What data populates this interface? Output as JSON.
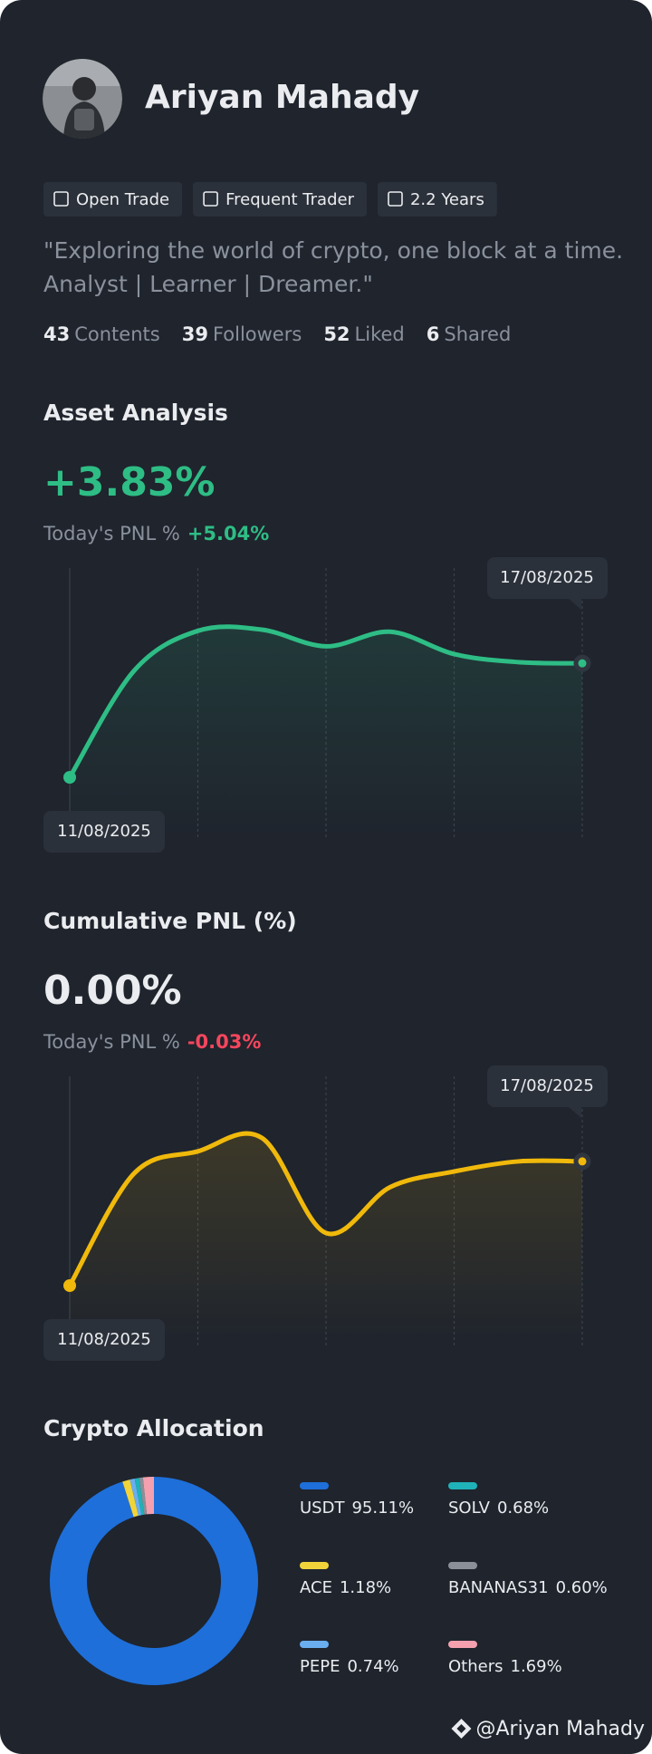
{
  "profile": {
    "name": "Ariyan Mahady",
    "badges": [
      "Open Trade",
      "Frequent Trader",
      "2.2 Years"
    ],
    "bio": [
      "\"Exploring the world of crypto, one block at a time.",
      "Analyst | Learner | Dreamer.\""
    ],
    "stats": [
      {
        "value": 43,
        "label": "Contents"
      },
      {
        "value": 39,
        "label": "Followers"
      },
      {
        "value": 52,
        "label": "Liked"
      },
      {
        "value": 6,
        "label": "Shared"
      }
    ]
  },
  "chart_data": [
    {
      "type": "line",
      "title": "Asset Analysis",
      "headline": "+3.83%",
      "subtitle": "Today's PNL %",
      "subtitle_value": "+5.04%",
      "subtitle_color": "#2ebd85",
      "headline_color": "#2ebd85",
      "date_start": "11/08/2025",
      "date_end": "17/08/2025",
      "color": "#2ebd85",
      "values": [
        0,
        3.57,
        4.92,
        4.96,
        4.4,
        4.89,
        4.14,
        3.87,
        3.83
      ]
    },
    {
      "type": "line",
      "title": "Cumulative PNL (%)",
      "headline": "0.00%",
      "subtitle": "Today's PNL %",
      "subtitle_value": "-0.03%",
      "subtitle_color": "#f6465d",
      "headline_color": "#eaecef",
      "date_start": "11/08/2025",
      "date_end": "17/08/2025",
      "color": "#f0b90b",
      "values": [
        -1.11,
        -0.11,
        0.09,
        0.21,
        -0.64,
        -0.23,
        -0.09,
        0,
        0
      ]
    },
    {
      "type": "pie",
      "title": "Crypto Allocation",
      "categories": [
        "USDT",
        "ACE",
        "PEPE",
        "SOLV",
        "BANANAS31",
        "Others"
      ],
      "values": [
        95.11,
        1.18,
        0.74,
        0.68,
        0.6,
        1.69
      ],
      "value_labels": [
        "95.11%",
        "1.18%",
        "0.74%",
        "0.68%",
        "0.60%",
        "1.69%"
      ],
      "colors": [
        "#1e6fd9",
        "#f0d43a",
        "#6aaef0",
        "#1fb2b8",
        "#8a8f98",
        "#f5a0ae"
      ]
    }
  ],
  "watermark": "@Ariyan Mahady"
}
